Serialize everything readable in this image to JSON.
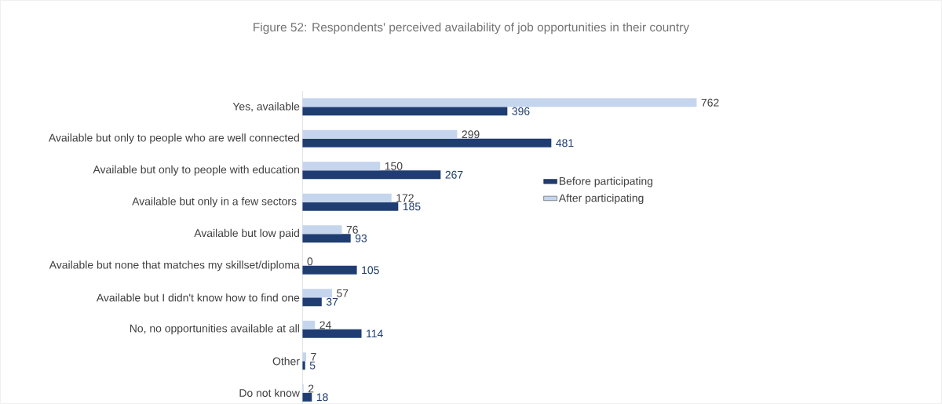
{
  "chart_data": {
    "type": "bar",
    "orientation": "horizontal",
    "title": "Figure 52: Respondents' perceived availability of job opportunities in their country",
    "categories": [
      "Yes, available",
      "Available but only to people who are well connected",
      "Available but only to people with education",
      "Available but only in a few sectors ",
      "Available but low paid",
      "Available but none that matches my skillset/diploma",
      "Available but I didn't know how to find one",
      "No, no opportunities available at all",
      "Other",
      "Do not know"
    ],
    "series": [
      {
        "name": "Before participating",
        "color": "#1f3d73",
        "values": [
          396,
          481,
          267,
          185,
          93,
          105,
          37,
          114,
          5,
          18
        ]
      },
      {
        "name": "After participating",
        "color": "#c5d5ed",
        "values": [
          762,
          299,
          150,
          172,
          76,
          0,
          57,
          24,
          7,
          2
        ]
      }
    ],
    "data_labels": true,
    "legend": "right"
  }
}
